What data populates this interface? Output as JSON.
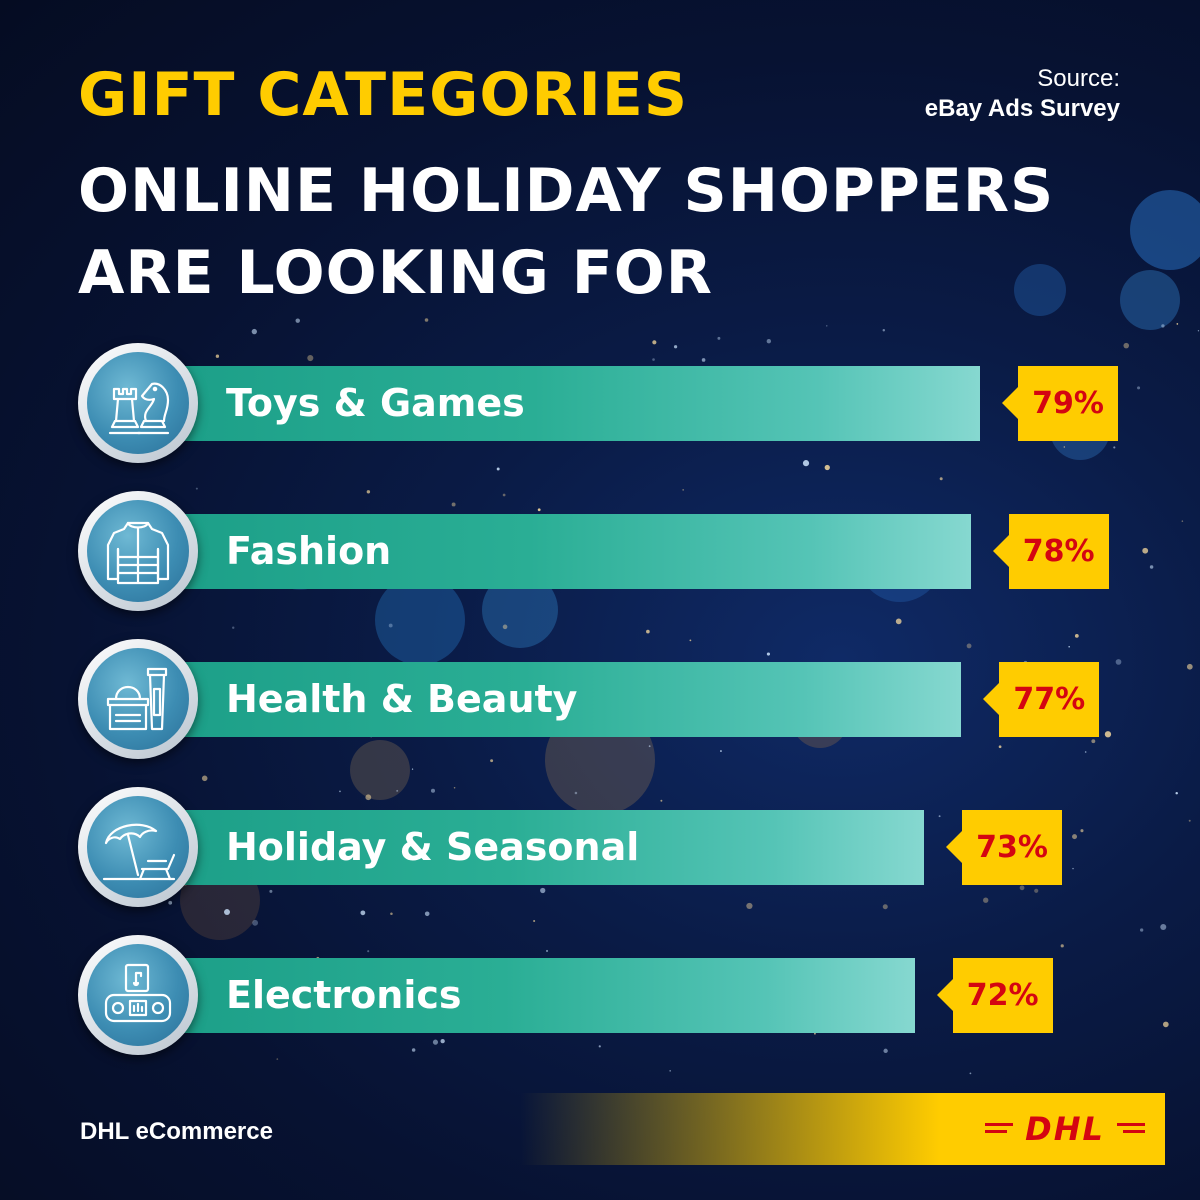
{
  "header": {
    "title_line1": "GIFT CATEGORIES",
    "title_line2": "ONLINE HOLIDAY SHOPPERS ARE LOOKING FOR",
    "source_label": "Source:",
    "source_name": "eBay Ads Survey"
  },
  "chart_data": {
    "type": "bar",
    "orientation": "horizontal",
    "title": "GIFT CATEGORIES ONLINE HOLIDAY SHOPPERS ARE LOOKING FOR",
    "categories": [
      "Toys & Games",
      "Fashion",
      "Health & Beauty",
      "Holiday & Seasonal",
      "Electronics"
    ],
    "values": [
      79,
      78,
      77,
      73,
      72
    ],
    "labels": [
      "79%",
      "78%",
      "77%",
      "73%",
      "72%"
    ],
    "icons": [
      "chess-icon",
      "jacket-icon",
      "cosmetics-icon",
      "beach-umbrella-icon",
      "radio-icon"
    ],
    "unit": "%",
    "grid": false,
    "legend": "none",
    "bar_color": "#2aae95",
    "label_box_color": "#ffcc00",
    "value_color": "#d40511"
  },
  "footer": {
    "brand": "DHL eCommerce",
    "logo_text": "DHL",
    "logo_color": "#d40511",
    "band_color": "#ffcc00"
  }
}
